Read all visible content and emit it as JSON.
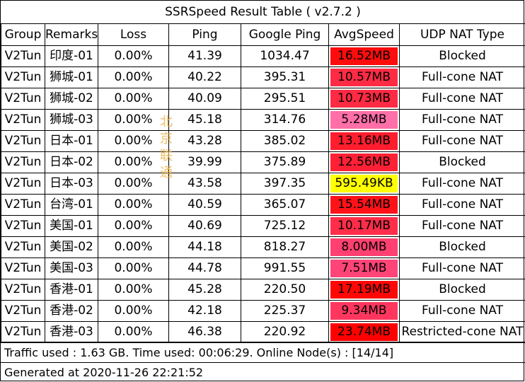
{
  "title": "SSRSpeed Result Table ( v2.7.2 )",
  "headers": [
    "Group",
    "Remarks",
    "Loss",
    "Ping",
    "Google Ping",
    "AvgSpeed",
    "UDP NAT Type"
  ],
  "rows": [
    {
      "group": "V2Tun",
      "remarks": "印度-01",
      "loss": "0.00%",
      "ping": "41.39",
      "google_ping": "1034.47",
      "speed": "16.52MB",
      "speed_color": "#ff0c0c",
      "nat": "Blocked"
    },
    {
      "group": "V2Tun",
      "remarks": "狮城-01",
      "loss": "0.00%",
      "ping": "40.22",
      "google_ping": "395.31",
      "speed": "10.57MB",
      "speed_color": "#ff2b45",
      "nat": "Full-cone NAT"
    },
    {
      "group": "V2Tun",
      "remarks": "狮城-02",
      "loss": "0.00%",
      "ping": "40.09",
      "google_ping": "295.51",
      "speed": "10.73MB",
      "speed_color": "#ff2a43",
      "nat": "Full-cone NAT"
    },
    {
      "group": "V2Tun",
      "remarks": "狮城-03",
      "loss": "0.00%",
      "ping": "45.18",
      "google_ping": "314.76",
      "speed": "5.28MB",
      "speed_color": "#ff6fa8",
      "nat": "Full-cone NAT"
    },
    {
      "group": "V2Tun",
      "remarks": "日本-01",
      "loss": "0.00%",
      "ping": "43.28",
      "google_ping": "385.02",
      "speed": "13.16MB",
      "speed_color": "#ff1d2e",
      "nat": "Full-cone NAT"
    },
    {
      "group": "V2Tun",
      "remarks": "日本-02",
      "loss": "0.00%",
      "ping": "39.99",
      "google_ping": "375.89",
      "speed": "12.56MB",
      "speed_color": "#ff2035",
      "nat": "Blocked"
    },
    {
      "group": "V2Tun",
      "remarks": "日本-03",
      "loss": "0.00%",
      "ping": "43.58",
      "google_ping": "397.35",
      "speed": "595.49KB",
      "speed_color": "#ffff00",
      "nat": "Full-cone NAT"
    },
    {
      "group": "V2Tun",
      "remarks": "台湾-01",
      "loss": "0.00%",
      "ping": "40.59",
      "google_ping": "365.07",
      "speed": "15.54MB",
      "speed_color": "#ff1218",
      "nat": "Full-cone NAT"
    },
    {
      "group": "V2Tun",
      "remarks": "美国-01",
      "loss": "0.00%",
      "ping": "40.69",
      "google_ping": "725.12",
      "speed": "10.17MB",
      "speed_color": "#ff2d49",
      "nat": "Full-cone NAT"
    },
    {
      "group": "V2Tun",
      "remarks": "美国-02",
      "loss": "0.00%",
      "ping": "44.18",
      "google_ping": "818.27",
      "speed": "8.00MB",
      "speed_color": "#ff4070",
      "nat": "Blocked"
    },
    {
      "group": "V2Tun",
      "remarks": "美国-03",
      "loss": "0.00%",
      "ping": "44.78",
      "google_ping": "991.55",
      "speed": "7.51MB",
      "speed_color": "#ff4478",
      "nat": "Full-cone NAT"
    },
    {
      "group": "V2Tun",
      "remarks": "香港-01",
      "loss": "0.00%",
      "ping": "45.28",
      "google_ping": "220.50",
      "speed": "17.19MB",
      "speed_color": "#ff0707",
      "nat": "Blocked"
    },
    {
      "group": "V2Tun",
      "remarks": "香港-02",
      "loss": "0.00%",
      "ping": "42.18",
      "google_ping": "225.37",
      "speed": "9.34MB",
      "speed_color": "#ff375f",
      "nat": "Full-cone NAT"
    },
    {
      "group": "V2Tun",
      "remarks": "香港-03",
      "loss": "0.00%",
      "ping": "46.38",
      "google_ping": "220.92",
      "speed": "23.74MB",
      "speed_color": "#ff0000",
      "nat": "Restricted-cone NAT"
    }
  ],
  "footer": {
    "traffic": "Traffic used : 1.63 GB. Time used: 00:06:29. Online Node(s) : [14/14]",
    "generated": "Generated at 2020-11-26 22:21:52"
  },
  "watermark": "北京联通",
  "colors": {
    "border": "#000000",
    "watermark": "#e8b24a"
  }
}
